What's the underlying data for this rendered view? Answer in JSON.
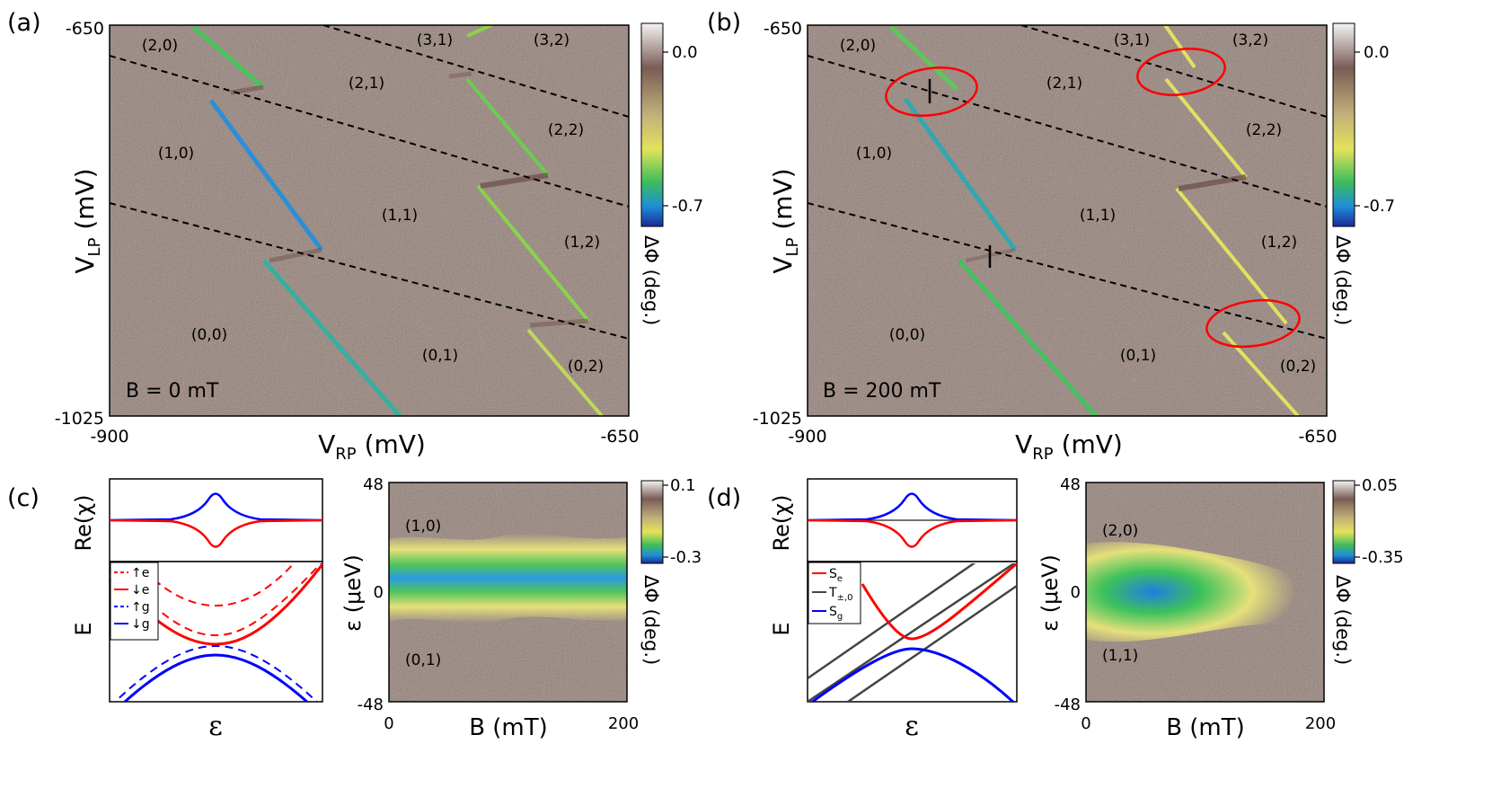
{
  "panels": {
    "a": {
      "letter": "(a)",
      "field": "B = 0 mT",
      "y_top": "-650",
      "y_bottom": "-1025",
      "x_left": "-900",
      "x_right": "-650",
      "ylabel_main": "V",
      "ylabel_sub": "LP",
      "ylabel_unit": " (mV)",
      "xlabel_main": "V",
      "xlabel_sub": "RP",
      "xlabel_unit": " (mV)",
      "cb_top": "0.0",
      "cb_bottom": "-0.7",
      "cb_label": "ΔΦ (deg.)",
      "charges": [
        "(2,0)",
        "(3,1)",
        "(3,2)",
        "(2,1)",
        "(2,2)",
        "(1,0)",
        "(1,1)",
        "(1,2)",
        "(0,0)",
        "(0,1)",
        "(0,2)"
      ]
    },
    "b": {
      "letter": "(b)",
      "field": "B = 200 mT",
      "y_top": "-650",
      "y_bottom": "-1025",
      "x_left": "-900",
      "x_right": "-650",
      "ylabel_main": "V",
      "ylabel_sub": "LP",
      "ylabel_unit": " (mV)",
      "xlabel_main": "V",
      "xlabel_sub": "RP",
      "xlabel_unit": " (mV)",
      "cb_top": "0.0",
      "cb_bottom": "-0.7",
      "cb_label": "ΔΦ (deg.)",
      "charges": [
        "(2,0)",
        "(3,1)",
        "(3,2)",
        "(2,1)",
        "(2,2)",
        "(1,0)",
        "(1,1)",
        "(1,2)",
        "(0,0)",
        "(0,1)",
        "(0,2)"
      ]
    },
    "c": {
      "letter": "(c)",
      "re_label": "Re(χ)",
      "e_label": "E",
      "eps_label": "ε",
      "legend": [
        "↑e",
        "↓e",
        "↑g",
        "↓g"
      ],
      "map_y_top": "48",
      "map_y_zero": "0",
      "map_y_bottom": "-48",
      "map_x_left": "0",
      "map_x_right": "200",
      "map_xlabel": "B (mT)",
      "map_ylabel": "ε (μeV)",
      "map_top_state": "(1,0)",
      "map_bottom_state": "(0,1)",
      "cb_top": "0.1",
      "cb_bottom": "-0.3",
      "cb_label": "ΔΦ (deg.)"
    },
    "d": {
      "letter": "(d)",
      "re_label": "Re(χ)",
      "e_label": "E",
      "eps_label": "ε",
      "legend_main": [
        "S",
        "T",
        "S"
      ],
      "legend_sub": [
        "e",
        "±,0",
        "g"
      ],
      "map_y_top": "48",
      "map_y_zero": "0",
      "map_y_bottom": "-48",
      "map_x_left": "0",
      "map_x_right": "200",
      "map_xlabel": "B (mT)",
      "map_ylabel": "ε (μeV)",
      "map_top_state": "(2,0)",
      "map_bottom_state": "(1,1)",
      "cb_top": "0.05",
      "cb_bottom": "-0.35",
      "cb_label": "ΔΦ (deg.)"
    }
  },
  "colors": {
    "background": "#9c8c85",
    "red": "#ff0000",
    "blue": "#0000ff",
    "gray_line": "#444444",
    "dashed": "#000000"
  }
}
